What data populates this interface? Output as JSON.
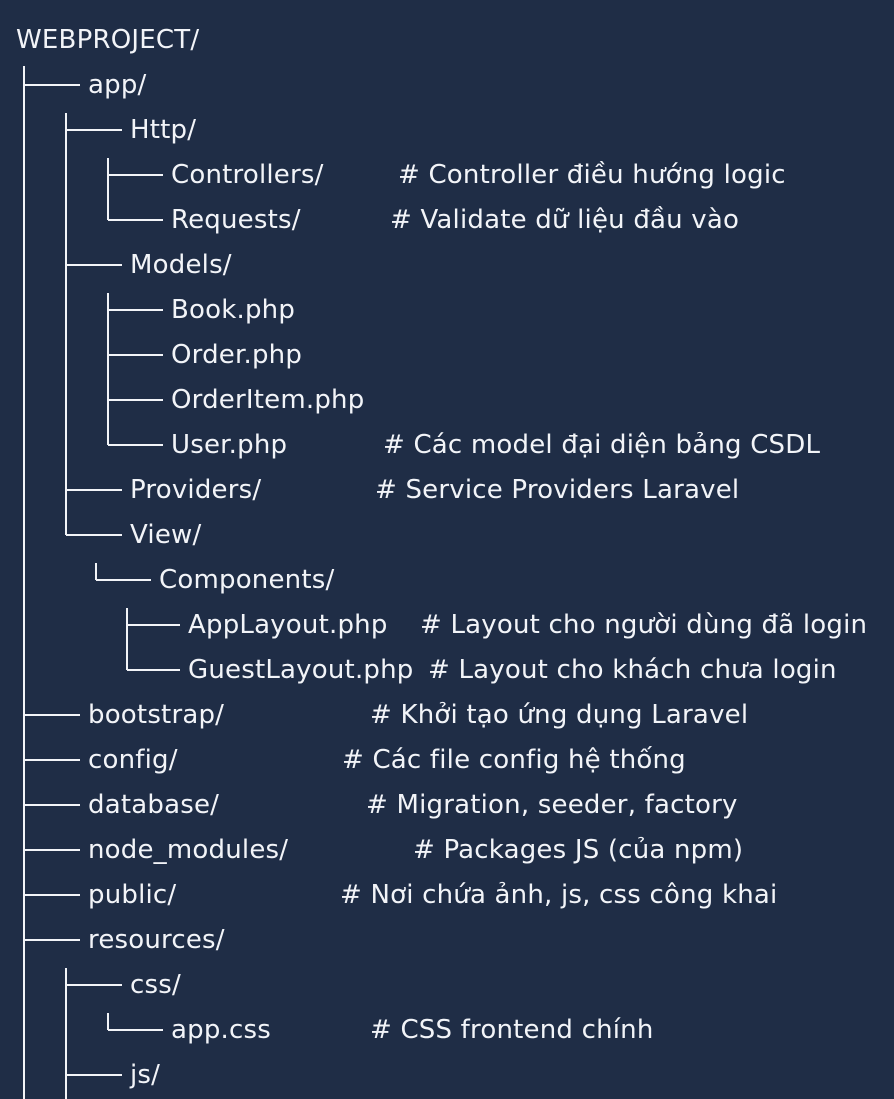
{
  "tree": {
    "root": "WEBPROJECT/",
    "entries": [
      {
        "label": "app/",
        "comment": ""
      },
      {
        "label": "Http/",
        "comment": ""
      },
      {
        "label": "Controllers/",
        "comment": "# Controller điều hướng logic"
      },
      {
        "label": "Requests/",
        "comment": "# Validate dữ liệu đầu vào"
      },
      {
        "label": "Models/",
        "comment": ""
      },
      {
        "label": "Book.php",
        "comment": ""
      },
      {
        "label": "Order.php",
        "comment": ""
      },
      {
        "label": "OrderItem.php",
        "comment": ""
      },
      {
        "label": "User.php",
        "comment": "# Các model đại diện bảng CSDL"
      },
      {
        "label": "Providers/",
        "comment": "# Service Providers Laravel"
      },
      {
        "label": "View/",
        "comment": ""
      },
      {
        "label": "Components/",
        "comment": ""
      },
      {
        "label": "AppLayout.php",
        "comment": "# Layout cho người dùng đã login"
      },
      {
        "label": "GuestLayout.php",
        "comment": "# Layout cho khách chưa login"
      },
      {
        "label": "bootstrap/",
        "comment": "# Khởi tạo ứng dụng Laravel"
      },
      {
        "label": "config/",
        "comment": "# Các file config hệ thống"
      },
      {
        "label": "database/",
        "comment": "# Migration, seeder, factory"
      },
      {
        "label": "node_modules/",
        "comment": "# Packages JS (của npm)"
      },
      {
        "label": "public/",
        "comment": "# Nơi chứa ảnh, js, css công khai"
      },
      {
        "label": "resources/",
        "comment": ""
      },
      {
        "label": "css/",
        "comment": ""
      },
      {
        "label": "app.css",
        "comment": "# CSS frontend chính"
      },
      {
        "label": "js/",
        "comment": ""
      }
    ]
  }
}
